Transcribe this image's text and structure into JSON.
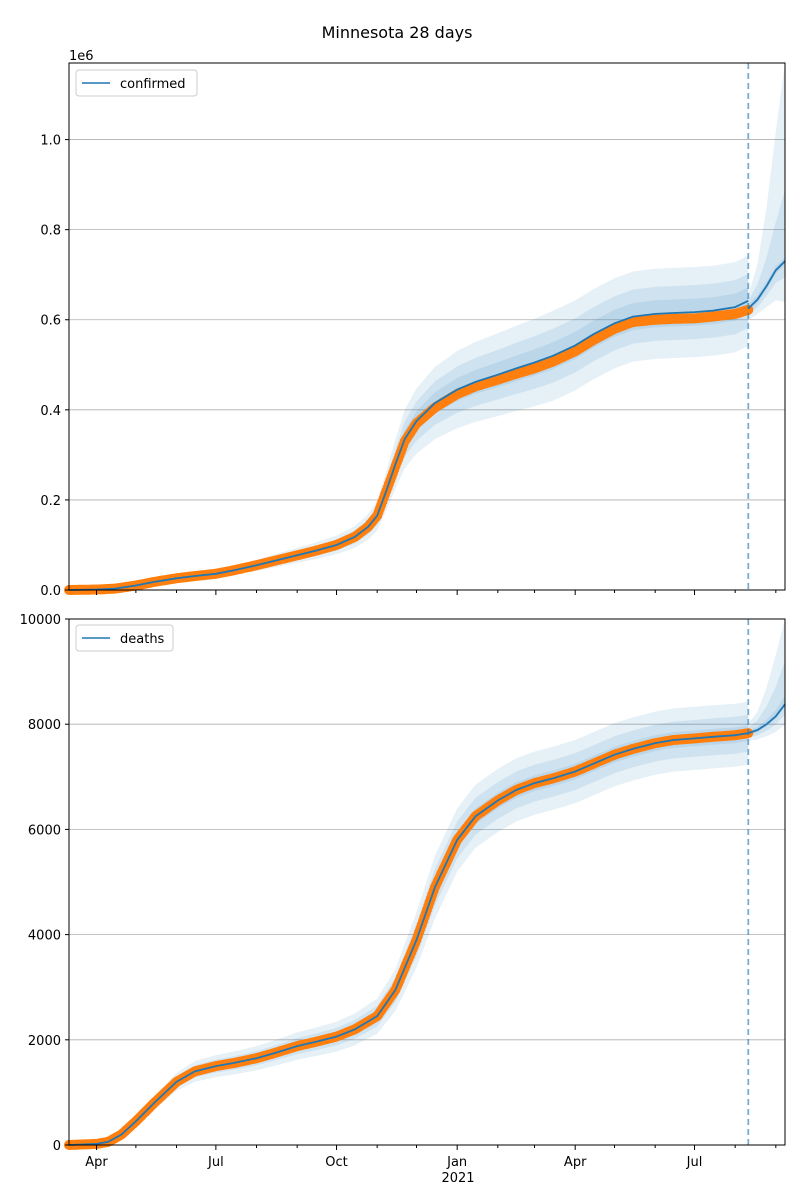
{
  "figure": {
    "title": "Minnesota 28 days"
  },
  "x_axis": {
    "ticks": [
      "Apr",
      "Jul",
      "Oct",
      "Jan",
      "Apr",
      "Jul"
    ],
    "year_label": "2021"
  },
  "colors": {
    "forecast_line": "#1f77b4",
    "observed_points": "#ff7f0e",
    "bands": "#1f77b4",
    "grid": "#b0b0b0",
    "divider": "#1f77b4"
  },
  "chart_data": [
    {
      "type": "line",
      "legend": "confirmed",
      "legend_position": "top-left",
      "offset_label": "1e6",
      "grid": true,
      "ylim": [
        0,
        1.17
      ],
      "y_ticks": [
        "0.0",
        "0.2",
        "0.4",
        "0.6",
        "0.8",
        "1.0"
      ],
      "x_range": [
        "2020-03-11",
        "2021-09-08"
      ],
      "forecast_start": "2021-08-11",
      "line_points": [
        [
          "2020-03-11",
          0.0
        ],
        [
          "2020-04-01",
          0.001
        ],
        [
          "2020-04-15",
          0.003
        ],
        [
          "2020-05-01",
          0.01
        ],
        [
          "2020-05-15",
          0.018
        ],
        [
          "2020-06-01",
          0.026
        ],
        [
          "2020-06-15",
          0.031
        ],
        [
          "2020-07-01",
          0.036
        ],
        [
          "2020-07-15",
          0.044
        ],
        [
          "2020-08-01",
          0.055
        ],
        [
          "2020-08-15",
          0.065
        ],
        [
          "2020-09-01",
          0.077
        ],
        [
          "2020-09-15",
          0.087
        ],
        [
          "2020-10-01",
          0.1
        ],
        [
          "2020-10-15",
          0.118
        ],
        [
          "2020-10-25",
          0.14
        ],
        [
          "2020-11-01",
          0.165
        ],
        [
          "2020-11-08",
          0.22
        ],
        [
          "2020-11-15",
          0.28
        ],
        [
          "2020-11-22",
          0.335
        ],
        [
          "2020-12-01",
          0.375
        ],
        [
          "2020-12-15",
          0.415
        ],
        [
          "2021-01-01",
          0.445
        ],
        [
          "2021-01-15",
          0.462
        ],
        [
          "2021-02-01",
          0.478
        ],
        [
          "2021-02-15",
          0.492
        ],
        [
          "2021-03-01",
          0.505
        ],
        [
          "2021-03-15",
          0.52
        ],
        [
          "2021-04-01",
          0.543
        ],
        [
          "2021-04-15",
          0.568
        ],
        [
          "2021-05-01",
          0.592
        ],
        [
          "2021-05-15",
          0.607
        ],
        [
          "2021-06-01",
          0.613
        ],
        [
          "2021-06-15",
          0.615
        ],
        [
          "2021-07-01",
          0.617
        ],
        [
          "2021-07-15",
          0.62
        ],
        [
          "2021-08-01",
          0.628
        ],
        [
          "2021-08-11",
          0.642
        ]
      ],
      "forecast_points": [
        [
          "2021-08-11",
          0.625
        ],
        [
          "2021-08-18",
          0.645
        ],
        [
          "2021-08-25",
          0.675
        ],
        [
          "2021-09-01",
          0.71
        ],
        [
          "2021-09-08",
          0.73
        ]
      ],
      "observed_points": [
        [
          "2020-03-11",
          0.0
        ],
        [
          "2020-04-01",
          0.001
        ],
        [
          "2020-04-15",
          0.003
        ],
        [
          "2020-05-01",
          0.01
        ],
        [
          "2020-05-15",
          0.018
        ],
        [
          "2020-06-01",
          0.026
        ],
        [
          "2020-06-15",
          0.031
        ],
        [
          "2020-07-01",
          0.036
        ],
        [
          "2020-07-15",
          0.044
        ],
        [
          "2020-08-01",
          0.055
        ],
        [
          "2020-08-15",
          0.065
        ],
        [
          "2020-09-01",
          0.077
        ],
        [
          "2020-09-15",
          0.087
        ],
        [
          "2020-10-01",
          0.1
        ],
        [
          "2020-10-15",
          0.118
        ],
        [
          "2020-10-25",
          0.14
        ],
        [
          "2020-11-01",
          0.165
        ],
        [
          "2020-11-08",
          0.22
        ],
        [
          "2020-11-15",
          0.275
        ],
        [
          "2020-11-22",
          0.33
        ],
        [
          "2020-12-01",
          0.37
        ],
        [
          "2020-12-15",
          0.405
        ],
        [
          "2021-01-01",
          0.435
        ],
        [
          "2021-01-15",
          0.452
        ],
        [
          "2021-02-01",
          0.467
        ],
        [
          "2021-02-15",
          0.48
        ],
        [
          "2021-03-01",
          0.492
        ],
        [
          "2021-03-15",
          0.507
        ],
        [
          "2021-04-01",
          0.53
        ],
        [
          "2021-04-15",
          0.555
        ],
        [
          "2021-05-01",
          0.58
        ],
        [
          "2021-05-15",
          0.595
        ],
        [
          "2021-06-01",
          0.6
        ],
        [
          "2021-06-15",
          0.602
        ],
        [
          "2021-07-01",
          0.603
        ],
        [
          "2021-07-15",
          0.607
        ],
        [
          "2021-08-01",
          0.613
        ],
        [
          "2021-08-11",
          0.622
        ]
      ],
      "band_half_widths": [
        0.03,
        0.06,
        0.1
      ],
      "forecast_band_top": [
        0.73,
        0.87,
        1.17
      ]
    },
    {
      "type": "line",
      "legend": "deaths",
      "legend_position": "top-left",
      "grid": true,
      "ylim": [
        0,
        10000
      ],
      "y_ticks": [
        "0",
        "2000",
        "4000",
        "6000",
        "8000",
        "10000"
      ],
      "x_range": [
        "2020-03-11",
        "2021-09-08"
      ],
      "forecast_start": "2021-08-11",
      "line_points": [
        [
          "2020-03-11",
          0
        ],
        [
          "2020-04-01",
          20
        ],
        [
          "2020-04-10",
          60
        ],
        [
          "2020-04-20",
          200
        ],
        [
          "2020-05-01",
          450
        ],
        [
          "2020-05-15",
          800
        ],
        [
          "2020-06-01",
          1200
        ],
        [
          "2020-06-15",
          1400
        ],
        [
          "2020-07-01",
          1500
        ],
        [
          "2020-07-15",
          1560
        ],
        [
          "2020-08-01",
          1650
        ],
        [
          "2020-08-15",
          1750
        ],
        [
          "2020-09-01",
          1880
        ],
        [
          "2020-09-15",
          1960
        ],
        [
          "2020-10-01",
          2060
        ],
        [
          "2020-10-15",
          2200
        ],
        [
          "2020-11-01",
          2450
        ],
        [
          "2020-11-15",
          2950
        ],
        [
          "2020-12-01",
          3900
        ],
        [
          "2020-12-15",
          4900
        ],
        [
          "2021-01-01",
          5800
        ],
        [
          "2021-01-15",
          6250
        ],
        [
          "2021-02-01",
          6550
        ],
        [
          "2021-02-15",
          6750
        ],
        [
          "2021-03-01",
          6880
        ],
        [
          "2021-03-15",
          6970
        ],
        [
          "2021-04-01",
          7100
        ],
        [
          "2021-04-15",
          7250
        ],
        [
          "2021-05-01",
          7420
        ],
        [
          "2021-05-15",
          7530
        ],
        [
          "2021-06-01",
          7640
        ],
        [
          "2021-06-15",
          7700
        ],
        [
          "2021-07-01",
          7730
        ],
        [
          "2021-07-15",
          7760
        ],
        [
          "2021-08-01",
          7790
        ],
        [
          "2021-08-11",
          7830
        ]
      ],
      "forecast_points": [
        [
          "2021-08-11",
          7830
        ],
        [
          "2021-08-18",
          7890
        ],
        [
          "2021-08-25",
          8000
        ],
        [
          "2021-09-01",
          8150
        ],
        [
          "2021-09-08",
          8380
        ]
      ],
      "observed_points": [
        [
          "2020-03-11",
          0
        ],
        [
          "2020-04-01",
          20
        ],
        [
          "2020-04-10",
          60
        ],
        [
          "2020-04-20",
          200
        ],
        [
          "2020-05-01",
          450
        ],
        [
          "2020-05-15",
          800
        ],
        [
          "2020-06-01",
          1200
        ],
        [
          "2020-06-15",
          1400
        ],
        [
          "2020-07-01",
          1500
        ],
        [
          "2020-07-15",
          1560
        ],
        [
          "2020-08-01",
          1650
        ],
        [
          "2020-08-15",
          1750
        ],
        [
          "2020-09-01",
          1880
        ],
        [
          "2020-09-15",
          1960
        ],
        [
          "2020-10-01",
          2060
        ],
        [
          "2020-10-15",
          2200
        ],
        [
          "2020-11-01",
          2450
        ],
        [
          "2020-11-15",
          2950
        ],
        [
          "2020-12-01",
          3900
        ],
        [
          "2020-12-15",
          4900
        ],
        [
          "2021-01-01",
          5800
        ],
        [
          "2021-01-15",
          6250
        ],
        [
          "2021-02-01",
          6550
        ],
        [
          "2021-02-15",
          6750
        ],
        [
          "2021-03-01",
          6880
        ],
        [
          "2021-03-15",
          6970
        ],
        [
          "2021-04-01",
          7100
        ],
        [
          "2021-04-15",
          7250
        ],
        [
          "2021-05-01",
          7420
        ],
        [
          "2021-05-15",
          7530
        ],
        [
          "2021-06-01",
          7640
        ],
        [
          "2021-06-15",
          7700
        ],
        [
          "2021-07-01",
          7730
        ],
        [
          "2021-07-15",
          7760
        ],
        [
          "2021-08-01",
          7790
        ],
        [
          "2021-08-11",
          7830
        ]
      ],
      "band_half_widths": [
        150,
        350,
        600
      ],
      "forecast_band_top": [
        8500,
        9100,
        9950
      ]
    }
  ]
}
